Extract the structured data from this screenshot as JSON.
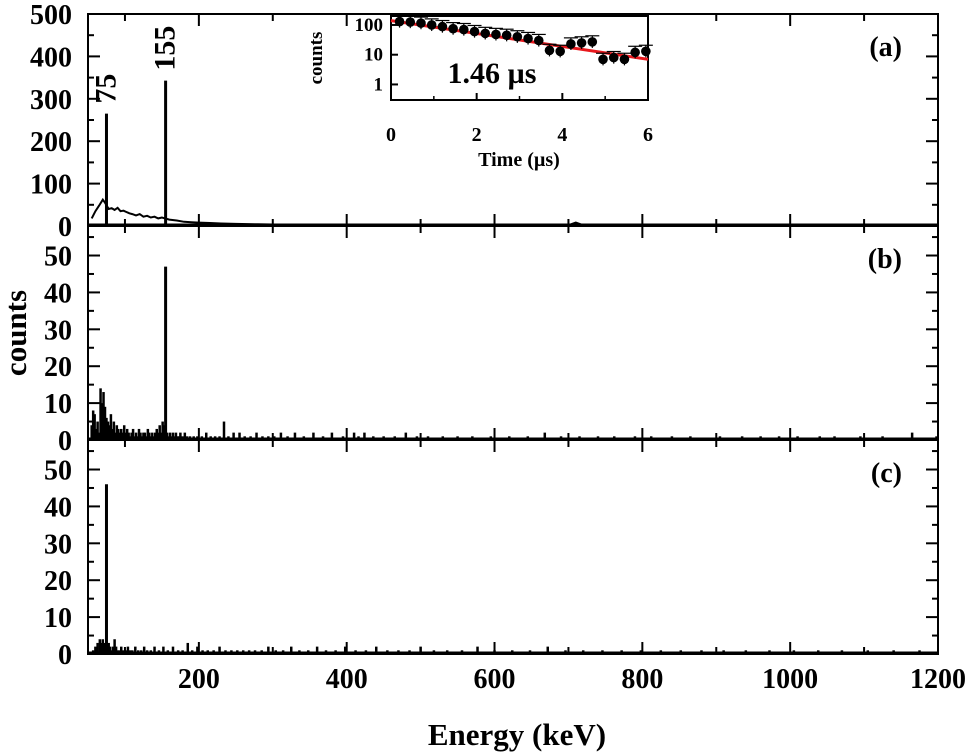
{
  "chart_data": [
    {
      "panel": "a",
      "type": "bar",
      "label": "(a)",
      "xlim": [
        50,
        1200
      ],
      "ylim": [
        0,
        500
      ],
      "yticks": [
        0,
        100,
        200,
        300,
        400,
        500
      ],
      "peaks": [
        {
          "x": 75,
          "y": 265,
          "label": "75"
        },
        {
          "x": 155,
          "y": 343,
          "label": "155"
        }
      ],
      "background": [
        [
          55,
          18
        ],
        [
          60,
          35
        ],
        [
          65,
          48
        ],
        [
          70,
          62
        ],
        [
          73,
          55
        ],
        [
          78,
          40
        ],
        [
          82,
          42
        ],
        [
          86,
          38
        ],
        [
          90,
          43
        ],
        [
          94,
          35
        ],
        [
          98,
          36
        ],
        [
          102,
          33
        ],
        [
          106,
          30
        ],
        [
          110,
          28
        ],
        [
          115,
          25
        ],
        [
          120,
          28
        ],
        [
          125,
          22
        ],
        [
          130,
          24
        ],
        [
          135,
          20
        ],
        [
          140,
          22
        ],
        [
          145,
          18
        ],
        [
          150,
          20
        ],
        [
          160,
          15
        ],
        [
          170,
          13
        ],
        [
          180,
          10
        ],
        [
          190,
          9
        ],
        [
          200,
          8
        ],
        [
          215,
          7
        ],
        [
          230,
          6
        ],
        [
          250,
          5
        ],
        [
          280,
          4
        ],
        [
          320,
          3
        ],
        [
          400,
          3
        ],
        [
          500,
          2
        ],
        [
          600,
          2
        ],
        [
          700,
          2
        ],
        [
          710,
          8
        ],
        [
          720,
          2
        ],
        [
          800,
          2
        ],
        [
          900,
          1
        ],
        [
          1000,
          1
        ],
        [
          1100,
          1
        ],
        [
          1200,
          1
        ]
      ]
    },
    {
      "panel": "b",
      "type": "bar",
      "label": "(b)",
      "xlim": [
        50,
        1200
      ],
      "ylim": [
        0,
        58
      ],
      "yticks": [
        0,
        10,
        20,
        30,
        40,
        50
      ],
      "peaks": [
        {
          "x": 155,
          "y": 47
        }
      ],
      "spikes": [
        [
          55,
          4
        ],
        [
          57,
          8
        ],
        [
          59,
          7
        ],
        [
          61,
          3
        ],
        [
          63,
          5
        ],
        [
          65,
          2
        ],
        [
          67,
          14
        ],
        [
          69,
          10
        ],
        [
          71,
          13
        ],
        [
          73,
          9
        ],
        [
          75,
          6
        ],
        [
          77,
          5
        ],
        [
          79,
          4
        ],
        [
          81,
          7
        ],
        [
          83,
          3
        ],
        [
          85,
          5
        ],
        [
          87,
          2
        ],
        [
          89,
          4
        ],
        [
          91,
          3
        ],
        [
          93,
          2
        ],
        [
          95,
          3
        ],
        [
          97,
          2
        ],
        [
          99,
          4
        ],
        [
          101,
          2
        ],
        [
          103,
          3
        ],
        [
          105,
          2
        ],
        [
          107,
          1
        ],
        [
          109,
          2
        ],
        [
          111,
          3
        ],
        [
          113,
          1
        ],
        [
          115,
          2
        ],
        [
          117,
          1
        ],
        [
          119,
          3
        ],
        [
          121,
          2
        ],
        [
          123,
          1
        ],
        [
          125,
          2
        ],
        [
          127,
          2
        ],
        [
          129,
          1
        ],
        [
          131,
          3
        ],
        [
          133,
          2
        ],
        [
          135,
          1
        ],
        [
          137,
          2
        ],
        [
          139,
          1
        ],
        [
          141,
          2
        ],
        [
          143,
          3
        ],
        [
          145,
          2
        ],
        [
          147,
          4
        ],
        [
          149,
          2
        ],
        [
          151,
          5
        ],
        [
          153,
          4
        ],
        [
          157,
          2
        ],
        [
          159,
          1
        ],
        [
          161,
          2
        ],
        [
          163,
          1
        ],
        [
          165,
          2
        ],
        [
          167,
          1
        ],
        [
          169,
          2
        ],
        [
          171,
          1
        ],
        [
          173,
          1
        ],
        [
          175,
          2
        ],
        [
          178,
          1
        ],
        [
          181,
          2
        ],
        [
          184,
          1
        ],
        [
          188,
          1
        ],
        [
          193,
          1
        ],
        [
          198,
          1
        ],
        [
          204,
          1
        ],
        [
          210,
          2
        ],
        [
          216,
          1
        ],
        [
          222,
          1
        ],
        [
          228,
          1
        ],
        [
          234,
          5
        ],
        [
          240,
          1
        ],
        [
          247,
          2
        ],
        [
          255,
          2
        ],
        [
          262,
          1
        ],
        [
          270,
          1
        ],
        [
          278,
          2
        ],
        [
          286,
          1
        ],
        [
          294,
          1
        ],
        [
          302,
          1
        ],
        [
          311,
          2
        ],
        [
          320,
          1
        ],
        [
          330,
          2
        ],
        [
          342,
          1
        ],
        [
          355,
          2
        ],
        [
          368,
          1
        ],
        [
          380,
          2
        ],
        [
          395,
          1
        ],
        [
          410,
          2
        ],
        [
          416,
          1
        ],
        [
          424,
          2
        ],
        [
          436,
          1
        ],
        [
          450,
          1
        ],
        [
          465,
          1
        ],
        [
          480,
          2
        ],
        [
          495,
          1
        ],
        [
          510,
          1
        ],
        [
          530,
          1
        ],
        [
          550,
          1
        ],
        [
          570,
          1
        ],
        [
          595,
          1
        ],
        [
          620,
          1
        ],
        [
          645,
          1
        ],
        [
          668,
          2
        ],
        [
          690,
          1
        ],
        [
          715,
          1
        ],
        [
          740,
          1
        ],
        [
          762,
          1
        ],
        [
          790,
          1
        ],
        [
          812,
          1
        ],
        [
          840,
          1
        ],
        [
          865,
          1
        ],
        [
          905,
          1
        ],
        [
          935,
          1
        ],
        [
          960,
          1
        ],
        [
          985,
          1
        ],
        [
          1010,
          1
        ],
        [
          1040,
          1
        ],
        [
          1060,
          1
        ],
        [
          1095,
          1
        ],
        [
          1125,
          1
        ],
        [
          1165,
          2
        ],
        [
          1198,
          1
        ]
      ]
    },
    {
      "panel": "c",
      "type": "bar",
      "label": "(c)",
      "xlim": [
        50,
        1200
      ],
      "ylim": [
        0,
        58
      ],
      "yticks": [
        0,
        10,
        20,
        30,
        40,
        50
      ],
      "peaks": [
        {
          "x": 75,
          "y": 46
        }
      ],
      "spikes": [
        [
          57,
          1
        ],
        [
          60,
          2
        ],
        [
          63,
          3
        ],
        [
          66,
          4
        ],
        [
          68,
          3
        ],
        [
          70,
          4
        ],
        [
          72,
          3
        ],
        [
          78,
          3
        ],
        [
          80,
          2
        ],
        [
          82,
          1
        ],
        [
          84,
          2
        ],
        [
          86,
          4
        ],
        [
          88,
          2
        ],
        [
          90,
          1
        ],
        [
          93,
          1
        ],
        [
          95,
          2
        ],
        [
          98,
          1
        ],
        [
          101,
          1
        ],
        [
          104,
          2
        ],
        [
          107,
          1
        ],
        [
          110,
          1
        ],
        [
          114,
          2
        ],
        [
          118,
          1
        ],
        [
          122,
          1
        ],
        [
          126,
          2
        ],
        [
          130,
          1
        ],
        [
          135,
          1
        ],
        [
          140,
          2
        ],
        [
          146,
          1
        ],
        [
          152,
          2
        ],
        [
          158,
          1
        ],
        [
          165,
          2
        ],
        [
          172,
          1
        ],
        [
          178,
          1
        ],
        [
          185,
          3
        ],
        [
          191,
          1
        ],
        [
          198,
          2
        ],
        [
          205,
          1
        ],
        [
          212,
          1
        ],
        [
          220,
          1
        ],
        [
          228,
          2
        ],
        [
          236,
          1
        ],
        [
          244,
          1
        ],
        [
          252,
          1
        ],
        [
          260,
          1
        ],
        [
          268,
          1
        ],
        [
          276,
          1
        ],
        [
          285,
          1
        ],
        [
          294,
          2
        ],
        [
          304,
          1
        ],
        [
          314,
          1
        ],
        [
          325,
          2
        ],
        [
          336,
          1
        ],
        [
          348,
          1
        ],
        [
          360,
          2
        ],
        [
          372,
          1
        ],
        [
          385,
          1
        ],
        [
          398,
          2
        ],
        [
          412,
          1
        ],
        [
          426,
          1
        ],
        [
          440,
          2
        ],
        [
          455,
          1
        ],
        [
          470,
          1
        ],
        [
          485,
          1
        ],
        [
          500,
          2
        ],
        [
          518,
          1
        ],
        [
          536,
          1
        ],
        [
          556,
          1
        ],
        [
          577,
          2
        ],
        [
          600,
          1
        ],
        [
          624,
          1
        ],
        [
          648,
          1
        ],
        [
          672,
          2
        ],
        [
          696,
          1
        ],
        [
          720,
          1
        ],
        [
          746,
          1
        ],
        [
          772,
          1
        ],
        [
          798,
          1
        ],
        [
          825,
          1
        ],
        [
          852,
          1
        ],
        [
          880,
          1
        ],
        [
          910,
          1
        ],
        [
          940,
          1
        ],
        [
          972,
          1
        ],
        [
          1005,
          1
        ],
        [
          1038,
          1
        ],
        [
          1070,
          1
        ],
        [
          1105,
          1
        ],
        [
          1140,
          1
        ],
        [
          1175,
          1
        ]
      ]
    },
    {
      "panel": "inset",
      "type": "scatter",
      "xlabel": "Time (µs)",
      "ylabel": "counts",
      "xlim": [
        0,
        6
      ],
      "ylog": true,
      "ylim_decades": [
        0.3,
        200
      ],
      "xticks": [
        0,
        2,
        4,
        6
      ],
      "yticks": [
        1,
        10,
        100
      ],
      "annotation": "1.46 µs",
      "fit": {
        "color": "#e8181d",
        "x": [
          0,
          6
        ],
        "y": [
          140,
          7
        ]
      },
      "points": [
        [
          0.2,
          130
        ],
        [
          0.45,
          125
        ],
        [
          0.7,
          115
        ],
        [
          0.95,
          100
        ],
        [
          1.2,
          88
        ],
        [
          1.45,
          75
        ],
        [
          1.7,
          70
        ],
        [
          1.95,
          60
        ],
        [
          2.2,
          52
        ],
        [
          2.45,
          48
        ],
        [
          2.7,
          45
        ],
        [
          2.95,
          40
        ],
        [
          3.2,
          35
        ],
        [
          3.45,
          30
        ],
        [
          3.7,
          14
        ],
        [
          3.95,
          13
        ],
        [
          4.2,
          23
        ],
        [
          4.45,
          25
        ],
        [
          4.7,
          27
        ],
        [
          4.95,
          7
        ],
        [
          5.2,
          8
        ],
        [
          5.45,
          7
        ],
        [
          5.7,
          12
        ],
        [
          5.95,
          13
        ]
      ]
    }
  ],
  "axes": {
    "xlabel": "Energy (keV)",
    "ylabel": "counts",
    "xtick_labels": [
      "200",
      "400",
      "600",
      "800",
      "1000",
      "1200"
    ],
    "xticks": [
      200,
      400,
      600,
      800,
      1000,
      1200
    ]
  },
  "colors": {
    "ink": "#000000",
    "fit": "#e8181d"
  }
}
